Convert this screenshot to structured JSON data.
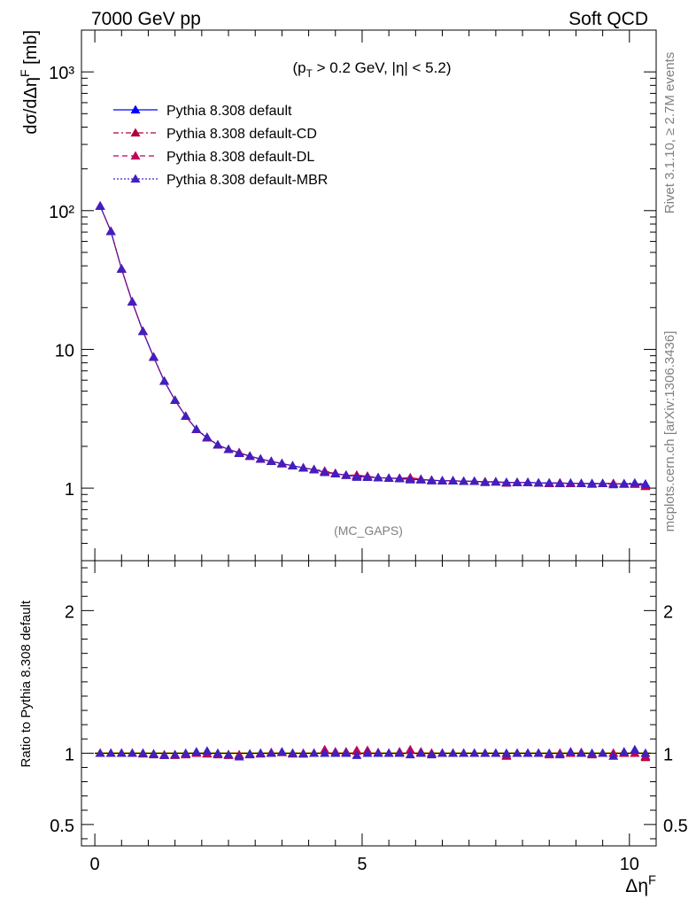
{
  "header": {
    "left": "7000 GeV pp",
    "right": "Soft QCD"
  },
  "side_labels": {
    "rivet": "Rivet 3.1.10, ≥ 2.7M events",
    "mcplots": "mcplots.cern.ch [arXiv:1306.3436]"
  },
  "chart_data": [
    {
      "type": "line",
      "panel": "main",
      "title": "(p_T > 0.2 GeV, |η| < 5.2)",
      "annotation": "(MC_GAPS)",
      "ylabel": "dσ/dΔη^F [mb]",
      "yscale": "log",
      "ylim": [
        0.3,
        2000
      ],
      "xlim": [
        -0.25,
        10.5
      ],
      "yticks": [
        {
          "value": 1,
          "label": "1"
        },
        {
          "value": 10,
          "label": "10"
        },
        {
          "value": 100,
          "label": "10²"
        },
        {
          "value": 1000,
          "label": "10³"
        }
      ],
      "legend_position": "top-left",
      "x": [
        0.1,
        0.3,
        0.5,
        0.7,
        0.9,
        1.1,
        1.3,
        1.5,
        1.7,
        1.9,
        2.1,
        2.3,
        2.5,
        2.7,
        2.9,
        3.1,
        3.3,
        3.5,
        3.7,
        3.9,
        4.1,
        4.3,
        4.5,
        4.7,
        4.9,
        5.1,
        5.3,
        5.5,
        5.7,
        5.9,
        6.1,
        6.3,
        6.5,
        6.7,
        6.9,
        7.1,
        7.3,
        7.5,
        7.7,
        7.9,
        8.1,
        8.3,
        8.5,
        8.7,
        8.9,
        9.1,
        9.3,
        9.5,
        9.7,
        9.9,
        10.1,
        10.3
      ],
      "series": [
        {
          "name": "Pythia 8.308 default",
          "color": "#0000ff",
          "linestyle": "solid",
          "values": [
            108,
            71,
            38,
            22,
            13.5,
            8.8,
            5.9,
            4.3,
            3.3,
            2.65,
            2.3,
            2.05,
            1.9,
            1.8,
            1.7,
            1.62,
            1.56,
            1.5,
            1.45,
            1.4,
            1.36,
            1.3,
            1.27,
            1.24,
            1.22,
            1.2,
            1.19,
            1.18,
            1.17,
            1.16,
            1.15,
            1.14,
            1.13,
            1.13,
            1.12,
            1.12,
            1.11,
            1.11,
            1.1,
            1.1,
            1.1,
            1.09,
            1.09,
            1.09,
            1.08,
            1.08,
            1.08,
            1.08,
            1.08,
            1.07,
            1.07,
            1.07
          ]
        },
        {
          "name": "Pythia 8.308 default-CD",
          "color": "#b0003c",
          "linestyle": "dashdot",
          "values": [
            108,
            71,
            38,
            22,
            13.5,
            8.8,
            5.9,
            4.3,
            3.3,
            2.65,
            2.3,
            2.05,
            1.9,
            1.8,
            1.7,
            1.62,
            1.56,
            1.5,
            1.45,
            1.4,
            1.36,
            1.32,
            1.27,
            1.24,
            1.24,
            1.22,
            1.19,
            1.18,
            1.18,
            1.18,
            1.16,
            1.14,
            1.13,
            1.13,
            1.12,
            1.12,
            1.11,
            1.11,
            1.09,
            1.1,
            1.1,
            1.09,
            1.08,
            1.09,
            1.08,
            1.08,
            1.07,
            1.08,
            1.08,
            1.07,
            1.07,
            1.03
          ]
        },
        {
          "name": "Pythia 8.308 default-DL",
          "color": "#c0005a",
          "linestyle": "dashed",
          "values": [
            108,
            71,
            38,
            22,
            13.5,
            8.8,
            5.9,
            4.3,
            3.3,
            2.65,
            2.3,
            2.05,
            1.9,
            1.8,
            1.7,
            1.62,
            1.56,
            1.5,
            1.45,
            1.4,
            1.36,
            1.33,
            1.28,
            1.24,
            1.24,
            1.22,
            1.19,
            1.18,
            1.18,
            1.19,
            1.16,
            1.14,
            1.13,
            1.13,
            1.12,
            1.12,
            1.11,
            1.11,
            1.09,
            1.1,
            1.1,
            1.09,
            1.08,
            1.09,
            1.08,
            1.08,
            1.07,
            1.08,
            1.08,
            1.07,
            1.07,
            1.04
          ]
        },
        {
          "name": "Pythia 8.308 default-MBR",
          "color": "#4020c0",
          "linestyle": "dotted",
          "values": [
            108,
            71,
            38,
            22,
            13.5,
            8.8,
            5.9,
            4.3,
            3.3,
            2.65,
            2.33,
            2.05,
            1.9,
            1.78,
            1.7,
            1.62,
            1.56,
            1.51,
            1.45,
            1.4,
            1.36,
            1.3,
            1.27,
            1.24,
            1.2,
            1.2,
            1.19,
            1.18,
            1.17,
            1.15,
            1.15,
            1.13,
            1.13,
            1.13,
            1.12,
            1.12,
            1.1,
            1.11,
            1.1,
            1.1,
            1.1,
            1.09,
            1.09,
            1.08,
            1.09,
            1.08,
            1.08,
            1.08,
            1.06,
            1.08,
            1.09,
            1.07
          ]
        }
      ]
    },
    {
      "type": "line",
      "panel": "ratio",
      "xlabel": "Δη^F",
      "ylabel": "Ratio to Pythia 8.308 default",
      "ylim": [
        0.35,
        2.35
      ],
      "xlim": [
        -0.25,
        10.5
      ],
      "xticks": [
        {
          "value": 0,
          "label": "0"
        },
        {
          "value": 5,
          "label": "5"
        },
        {
          "value": 10,
          "label": "10"
        }
      ],
      "yticks": [
        {
          "value": 0.5,
          "label": "0.5"
        },
        {
          "value": 1,
          "label": "1"
        },
        {
          "value": 2,
          "label": "2"
        }
      ],
      "reference_band_color": "#ffff66",
      "x": [
        0.1,
        0.3,
        0.5,
        0.7,
        0.9,
        1.1,
        1.3,
        1.5,
        1.7,
        1.9,
        2.1,
        2.3,
        2.5,
        2.7,
        2.9,
        3.1,
        3.3,
        3.5,
        3.7,
        3.9,
        4.1,
        4.3,
        4.5,
        4.7,
        4.9,
        5.1,
        5.3,
        5.5,
        5.7,
        5.9,
        6.1,
        6.3,
        6.5,
        6.7,
        6.9,
        7.1,
        7.3,
        7.5,
        7.7,
        7.9,
        8.1,
        8.3,
        8.5,
        8.7,
        8.9,
        9.1,
        9.3,
        9.5,
        9.7,
        9.9,
        10.1,
        10.3
      ],
      "series": [
        {
          "name": "Pythia 8.308 default-CD",
          "color": "#b0003c",
          "values": [
            1.0,
            1.0,
            1.0,
            1.0,
            0.995,
            0.99,
            0.985,
            0.985,
            0.99,
            1.0,
            0.995,
            0.99,
            0.985,
            0.985,
            0.99,
            0.995,
            1.0,
            1.005,
            0.995,
            0.995,
            1.0,
            1.02,
            1.0,
            1.005,
            1.015,
            1.015,
            1.0,
            1.0,
            1.005,
            1.02,
            1.005,
            1.0,
            1.0,
            1.0,
            1.0,
            1.0,
            1.0,
            1.0,
            0.98,
            1.0,
            1.0,
            1.0,
            0.99,
            1.0,
            1.0,
            1.0,
            0.99,
            1.0,
            1.0,
            1.0,
            1.0,
            0.97
          ]
        },
        {
          "name": "Pythia 8.308 default-DL",
          "color": "#c0005a",
          "values": [
            1.0,
            1.0,
            1.0,
            1.0,
            1.0,
            0.995,
            0.99,
            0.99,
            0.995,
            1.0,
            1.0,
            0.995,
            0.99,
            0.99,
            0.995,
            1.0,
            1.005,
            1.005,
            1.0,
            1.0,
            1.0,
            1.025,
            1.01,
            1.01,
            1.02,
            1.02,
            1.005,
            1.0,
            1.01,
            1.025,
            1.01,
            1.0,
            1.0,
            1.0,
            1.0,
            1.0,
            1.0,
            1.0,
            0.985,
            1.0,
            1.0,
            1.0,
            0.995,
            1.0,
            1.0,
            1.005,
            0.995,
            1.0,
            1.0,
            1.005,
            1.0,
            0.98
          ]
        },
        {
          "name": "Pythia 8.308 default-MBR",
          "color": "#4020c0",
          "values": [
            1.0,
            1.0,
            1.0,
            1.0,
            1.0,
            0.995,
            0.985,
            0.99,
            1.0,
            1.01,
            1.015,
            1.0,
            0.99,
            0.975,
            0.995,
            1.0,
            1.0,
            1.01,
            1.0,
            0.995,
            1.0,
            1.0,
            1.0,
            1.0,
            0.985,
            1.0,
            1.0,
            1.0,
            1.0,
            0.99,
            1.0,
            0.99,
            1.0,
            1.0,
            1.0,
            1.0,
            1.0,
            1.0,
            1.0,
            1.0,
            1.0,
            1.0,
            1.0,
            0.99,
            1.01,
            1.0,
            1.0,
            1.0,
            0.98,
            1.01,
            1.025,
            1.0
          ]
        }
      ]
    }
  ]
}
